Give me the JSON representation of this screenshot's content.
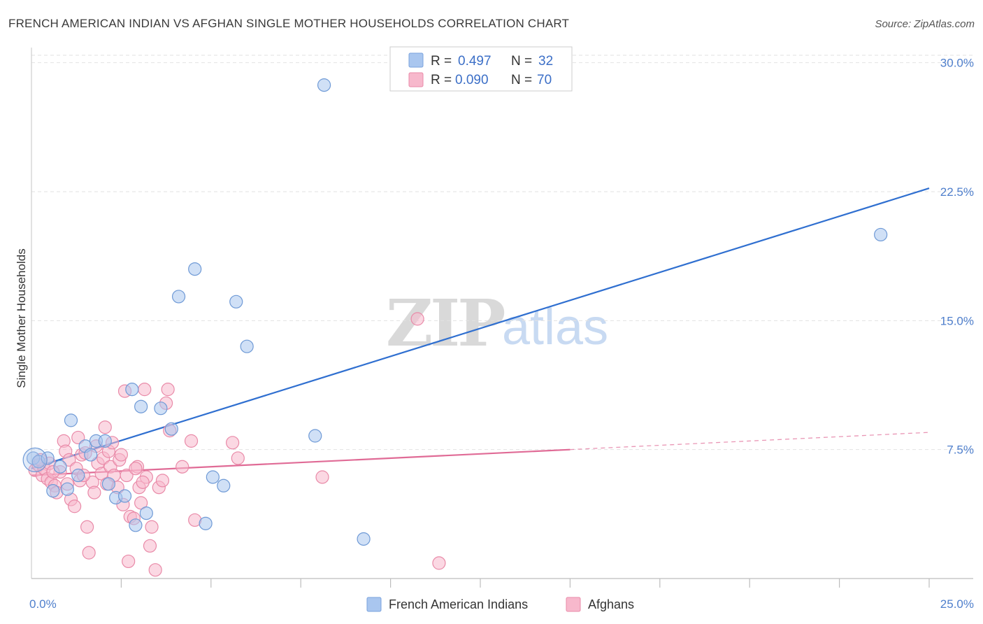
{
  "chart_data": {
    "type": "scatter",
    "title": "FRENCH AMERICAN INDIAN VS AFGHAN SINGLE MOTHER HOUSEHOLDS CORRELATION CHART",
    "source": "Source: ZipAtlas.com",
    "watermark": {
      "zip": "ZIP",
      "atlas": "atlas"
    },
    "ylabel": "Single Mother Households",
    "xlabel": "",
    "xlim": [
      0,
      25
    ],
    "ylim": [
      0,
      30.8
    ],
    "x_tick_labels": [
      "0.0%",
      "25.0%"
    ],
    "x_tick_values": [
      0,
      25
    ],
    "x_minor_ticks": [
      2.5,
      5,
      7.5,
      10,
      12.5,
      15,
      17.5,
      20,
      22.5
    ],
    "y_ticks": [
      {
        "value": 7.5,
        "label": "7.5%"
      },
      {
        "value": 15.0,
        "label": "15.0%"
      },
      {
        "value": 22.5,
        "label": "22.5%"
      },
      {
        "value": 30.0,
        "label": "30.0%"
      }
    ],
    "grid": true,
    "legend_position": "top-center",
    "legend": [
      {
        "r_label": "R =",
        "r_value": "0.497",
        "n_label": "N =",
        "n_value": "32",
        "color": "#a9c6ef",
        "stroke": "#7aa3dd"
      },
      {
        "r_label": "R =",
        "r_value": "0.090",
        "n_label": "N =",
        "n_value": "70",
        "color": "#f7b8cc",
        "stroke": "#e98aa8"
      }
    ],
    "series": [
      {
        "name": "French American Indians",
        "color": "#a9c6ef",
        "stroke": "#6f9ad6",
        "trend_color": "#2f6fd0",
        "trend": {
          "x0": 0,
          "y0": 6.4,
          "x1": 25,
          "y1": 22.7
        },
        "points": [
          [
            0.05,
            7.0
          ],
          [
            0.2,
            6.8
          ],
          [
            0.45,
            7.0
          ],
          [
            0.8,
            6.5
          ],
          [
            0.6,
            5.1
          ],
          [
            1.0,
            5.2
          ],
          [
            1.1,
            9.2
          ],
          [
            1.3,
            6.0
          ],
          [
            1.5,
            7.7
          ],
          [
            1.65,
            7.2
          ],
          [
            1.8,
            8.0
          ],
          [
            2.05,
            8.0
          ],
          [
            2.15,
            5.5
          ],
          [
            2.35,
            4.7
          ],
          [
            2.6,
            4.8
          ],
          [
            2.8,
            11.0
          ],
          [
            2.9,
            3.1
          ],
          [
            3.05,
            10.0
          ],
          [
            3.2,
            3.8
          ],
          [
            3.6,
            9.9
          ],
          [
            3.9,
            8.7
          ],
          [
            4.1,
            16.4
          ],
          [
            4.55,
            18.0
          ],
          [
            4.85,
            3.2
          ],
          [
            5.05,
            5.9
          ],
          [
            5.35,
            5.4
          ],
          [
            5.7,
            16.1
          ],
          [
            6.0,
            13.5
          ],
          [
            7.9,
            8.3
          ],
          [
            8.15,
            28.7
          ],
          [
            9.25,
            2.3
          ],
          [
            23.65,
            20.0
          ]
        ]
      },
      {
        "name": "Afghans",
        "color": "#f7b8cc",
        "stroke": "#e98aa8",
        "trend_color": "#e06b96",
        "trend": {
          "x0": 0,
          "y0": 6.0,
          "x1": 15,
          "y1": 7.5
        },
        "trend_dashed": {
          "x0": 15,
          "y0": 7.5,
          "x1": 25,
          "y1": 8.5
        },
        "points": [
          [
            0.1,
            6.3
          ],
          [
            0.2,
            6.6
          ],
          [
            0.3,
            6.0
          ],
          [
            0.35,
            6.4
          ],
          [
            0.45,
            5.8
          ],
          [
            0.55,
            5.6
          ],
          [
            0.65,
            5.4
          ],
          [
            0.7,
            5.0
          ],
          [
            0.8,
            6.2
          ],
          [
            0.9,
            8.0
          ],
          [
            0.95,
            7.4
          ],
          [
            1.05,
            6.9
          ],
          [
            1.1,
            4.6
          ],
          [
            1.2,
            4.2
          ],
          [
            1.25,
            6.4
          ],
          [
            1.3,
            8.2
          ],
          [
            1.35,
            5.7
          ],
          [
            1.4,
            7.2
          ],
          [
            1.5,
            7.3
          ],
          [
            1.55,
            3.0
          ],
          [
            1.6,
            1.5
          ],
          [
            1.7,
            5.6
          ],
          [
            1.75,
            5.0
          ],
          [
            1.8,
            7.7
          ],
          [
            1.85,
            6.7
          ],
          [
            1.95,
            6.1
          ],
          [
            2.0,
            7.0
          ],
          [
            2.05,
            8.8
          ],
          [
            2.15,
            7.4
          ],
          [
            2.2,
            6.5
          ],
          [
            2.25,
            7.9
          ],
          [
            2.3,
            6.0
          ],
          [
            2.4,
            5.3
          ],
          [
            2.45,
            6.9
          ],
          [
            2.5,
            7.2
          ],
          [
            2.55,
            4.3
          ],
          [
            2.6,
            10.9
          ],
          [
            2.65,
            6.0
          ],
          [
            2.7,
            1.0
          ],
          [
            2.75,
            3.6
          ],
          [
            2.85,
            3.5
          ],
          [
            2.95,
            6.5
          ],
          [
            3.0,
            5.3
          ],
          [
            3.05,
            4.4
          ],
          [
            3.15,
            11.0
          ],
          [
            3.2,
            5.9
          ],
          [
            3.3,
            1.9
          ],
          [
            3.35,
            3.0
          ],
          [
            3.45,
            0.5
          ],
          [
            3.55,
            5.3
          ],
          [
            3.65,
            5.7
          ],
          [
            3.75,
            10.2
          ],
          [
            3.8,
            11.0
          ],
          [
            3.85,
            8.6
          ],
          [
            4.2,
            6.5
          ],
          [
            4.45,
            8.0
          ],
          [
            4.55,
            3.4
          ],
          [
            5.6,
            7.9
          ],
          [
            5.75,
            7.0
          ],
          [
            8.1,
            5.9
          ],
          [
            10.75,
            15.1
          ],
          [
            11.35,
            0.9
          ],
          [
            0.25,
            6.9
          ],
          [
            0.5,
            6.7
          ],
          [
            0.6,
            6.2
          ],
          [
            1.0,
            5.5
          ],
          [
            1.45,
            6.0
          ],
          [
            2.1,
            5.5
          ],
          [
            2.9,
            6.4
          ],
          [
            3.1,
            5.6
          ]
        ]
      }
    ]
  }
}
